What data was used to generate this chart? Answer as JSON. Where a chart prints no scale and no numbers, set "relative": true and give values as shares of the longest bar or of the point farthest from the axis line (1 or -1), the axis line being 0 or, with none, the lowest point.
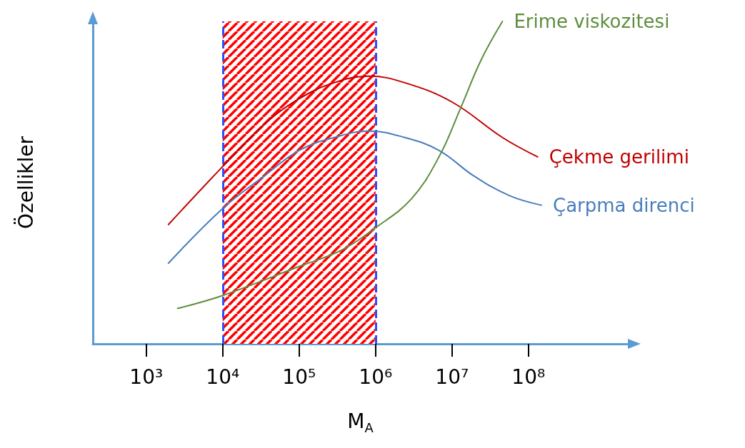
{
  "chart_data": {
    "type": "line",
    "relative": true,
    "xlabel": "M$_{A}$",
    "ylabel": "Özellikler",
    "log": "x",
    "grid": false,
    "legend": false,
    "marker": "none",
    "line_style": "solid",
    "xlim": [
      200,
      2000000000
    ],
    "xticks": [
      {
        "value": 1000,
        "label": "10³"
      },
      {
        "value": 10000,
        "label": "10⁴"
      },
      {
        "value": 100000,
        "label": "10⁵"
      },
      {
        "value": 1000000,
        "label": "10⁶"
      },
      {
        "value": 10000000,
        "label": "10⁷"
      },
      {
        "value": 100000000,
        "label": "10⁸"
      }
    ],
    "bands": [
      {
        "axis": "x",
        "from": 10000,
        "to": 1000000,
        "color": "#ff0000"
      }
    ],
    "ref_lines": [
      {
        "axis": "x",
        "value": 10000,
        "color": "#2f4ff5",
        "line_style": "dashed"
      },
      {
        "axis": "x",
        "value": 1000000,
        "color": "#2f4ff5",
        "line_style": "dashed"
      }
    ],
    "series": [
      {
        "name": "Çekme gerilimi",
        "color": "#c00000",
        "x": [
          1950,
          10000,
          34700,
          100000,
          288000,
          832000,
          2400000,
          10000000,
          45700000,
          132000000
        ],
        "values": [
          0.37,
          0.55,
          0.68,
          0.76,
          0.81,
          0.83,
          0.81,
          0.75,
          0.64,
          0.58
        ]
      },
      {
        "name": "Çarpma direnci",
        "color": "#4a7ebb",
        "x": [
          1950,
          10000,
          34700,
          100000,
          288000,
          832000,
          2400000,
          6760000,
          19500000,
          56200000,
          148000000
        ],
        "values": [
          0.25,
          0.42,
          0.52,
          0.6,
          0.64,
          0.66,
          0.64,
          0.6,
          0.52,
          0.46,
          0.43
        ]
      },
      {
        "name": "Erime viskozitesi",
        "color": "#5e8e3e",
        "x": [
          2570,
          10000,
          100000,
          355000,
          1000000,
          2950000,
          6760000,
          12900000,
          24000000,
          45700000
        ],
        "values": [
          0.11,
          0.15,
          0.24,
          0.29,
          0.36,
          0.45,
          0.58,
          0.73,
          0.88,
          1.0
        ]
      }
    ]
  }
}
